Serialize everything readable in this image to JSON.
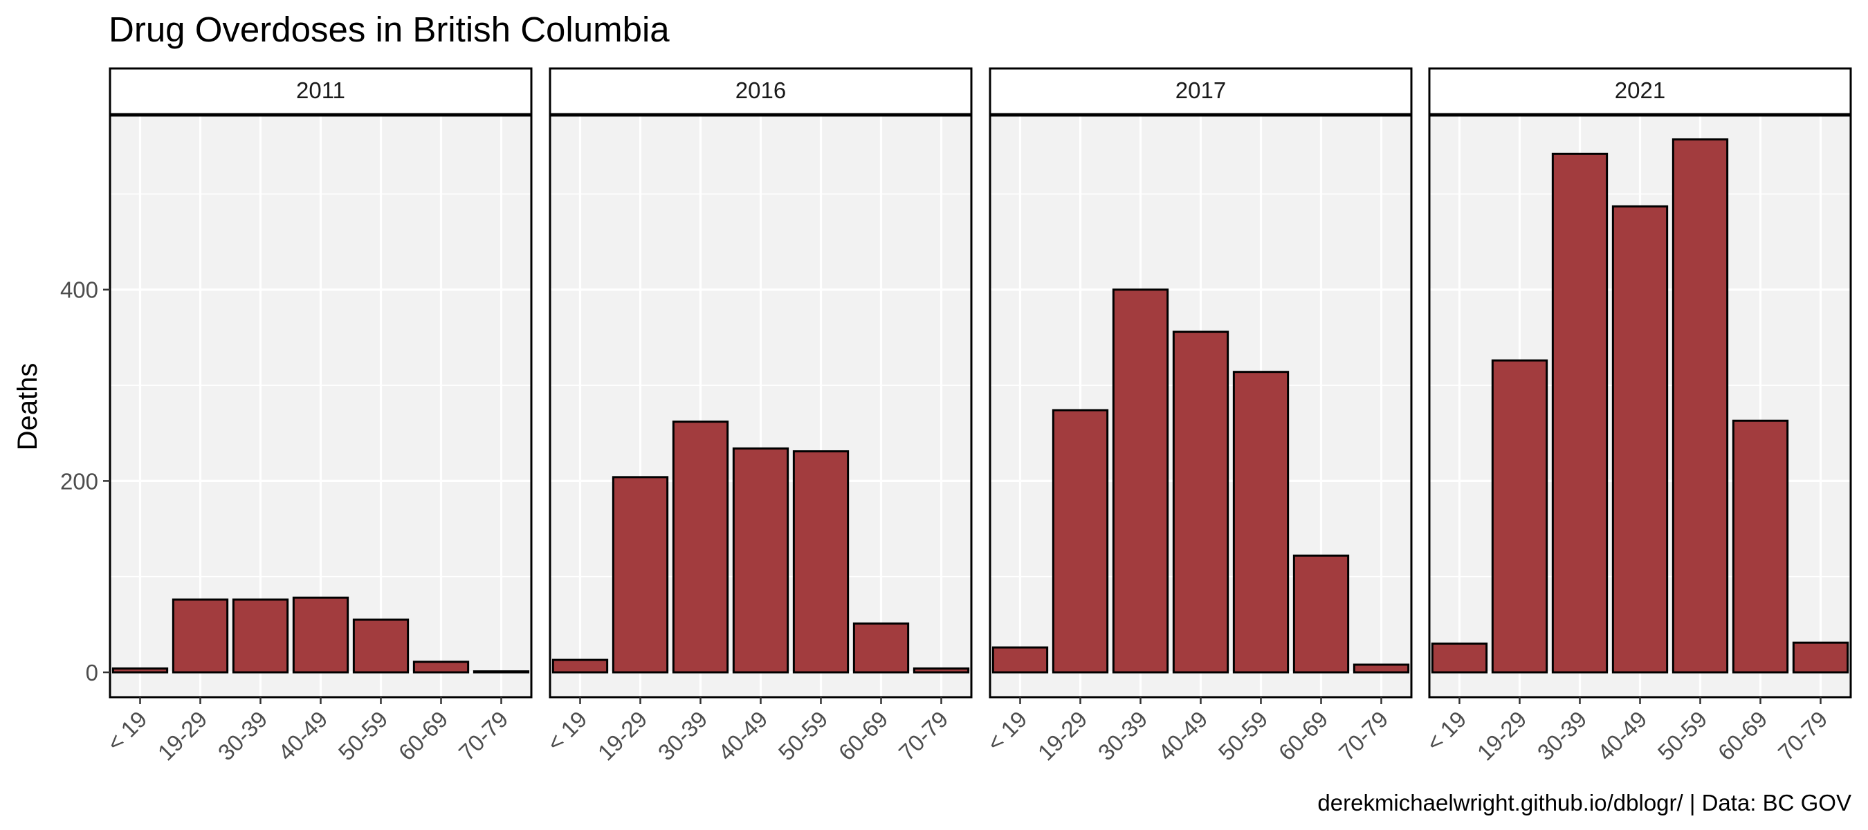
{
  "chart_data": {
    "type": "bar",
    "title": "Drug Overdoses in British Columbia",
    "ylabel": "Deaths",
    "xlabel": "",
    "caption": "derekmichaelwright.github.io/dblogr/ | Data: BC GOV",
    "categories": [
      "< 19",
      "19-29",
      "30-39",
      "40-49",
      "50-59",
      "60-69",
      "70-79"
    ],
    "ylim": [
      -26,
      582
    ],
    "yticks": [
      0,
      200,
      400
    ],
    "grid": true,
    "legend": "none",
    "colors": {
      "bar_fill": "#a23c3e",
      "bar_stroke": "#000000",
      "panel_bg": "#f2f2f2",
      "grid": "#ffffff"
    },
    "facets": [
      {
        "label": "2011",
        "values": [
          4,
          76,
          76,
          78,
          55,
          11,
          1
        ]
      },
      {
        "label": "2016",
        "values": [
          13,
          204,
          262,
          234,
          231,
          51,
          4
        ]
      },
      {
        "label": "2017",
        "values": [
          26,
          274,
          400,
          356,
          314,
          122,
          8
        ]
      },
      {
        "label": "2021",
        "values": [
          30,
          326,
          542,
          487,
          557,
          263,
          31
        ]
      }
    ]
  }
}
